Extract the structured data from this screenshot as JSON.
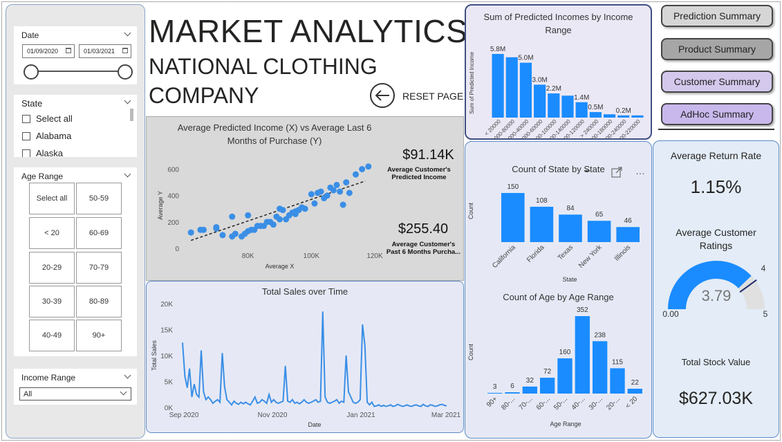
{
  "header": {
    "title": "MARKET ANALYTICS",
    "subtitle_line1": "NATIONAL CLOTHING",
    "subtitle_line2": "COMPANY",
    "reset_label": "RESET PAGE"
  },
  "slicers": {
    "date": {
      "title": "Date",
      "start": "01/09/2020",
      "end": "01/03/2021"
    },
    "state": {
      "title": "State",
      "items": [
        "Select all",
        "Alabama",
        "Alaska"
      ]
    },
    "age_range": {
      "title": "Age Range",
      "tiles": [
        "Select all",
        "50-59",
        "< 20",
        "60-69",
        "20-29",
        "70-79",
        "30-39",
        "80-89",
        "40-49",
        "90+"
      ]
    },
    "income_range": {
      "title": "Income Range",
      "selected": "All"
    }
  },
  "nav": {
    "prediction": "Prediction Summary",
    "product": "Product Summary",
    "customer": "Customer Summary",
    "adhoc": "AdHoc Summary"
  },
  "scatter": {
    "title_line1": "Average Predicted Income (X) vs Average Last 6",
    "title_line2": "Months of Purchase (Y)"
  },
  "kpis": {
    "predicted_income": {
      "value": "$91.14K",
      "label_line1": "Average Customer's",
      "label_line2": "Predicted Income"
    },
    "past_purchase": {
      "value": "$255.40",
      "label_line1": "Average Customer's",
      "label_line2": "Past 6 Months Purcha..."
    }
  },
  "sales": {
    "title": "Total Sales over Time"
  },
  "income_chart": {
    "title_line1": "Sum of Predicted Incomes by Income",
    "title_line2": "Range"
  },
  "state_chart": {
    "title": "Count of State by State"
  },
  "age_chart": {
    "title": "Count of Age by Age Range"
  },
  "right_kpis": {
    "return_rate_label": "Average Return Rate",
    "return_rate_value": "1.15%",
    "ratings_label_line1": "Average Customer",
    "ratings_label_line2": "Ratings",
    "gauge_value": "3.79",
    "gauge_min": "0.00",
    "gauge_max": "5",
    "gauge_target": "4",
    "stock_label": "Total Stock Value",
    "stock_value": "$627.03K"
  },
  "colors": {
    "bar": "#1a8cff",
    "point": "#3a8ee6",
    "line": "#3a8ee6",
    "nav_selected": "#d4c8ec",
    "nav_default": "#d6d6d6"
  },
  "chart_data": [
    {
      "type": "scatter",
      "xlabel": "Average X",
      "ylabel": "Average Y",
      "xticks": [
        "80K",
        "100K",
        "120K"
      ],
      "yticks": [
        "0",
        "200",
        "400",
        "600"
      ],
      "xlim": [
        60000,
        120000
      ],
      "ylim": [
        0,
        650
      ],
      "points": [
        [
          62000,
          120
        ],
        [
          65000,
          140
        ],
        [
          66000,
          140
        ],
        [
          70000,
          150
        ],
        [
          70000,
          160
        ],
        [
          72000,
          100
        ],
        [
          75000,
          90
        ],
        [
          76000,
          110
        ],
        [
          78000,
          90
        ],
        [
          79000,
          110
        ],
        [
          80000,
          130
        ],
        [
          81000,
          140
        ],
        [
          82000,
          140
        ],
        [
          83000,
          170
        ],
        [
          84000,
          170
        ],
        [
          85000,
          170
        ],
        [
          86000,
          200
        ],
        [
          87000,
          200
        ],
        [
          88000,
          180
        ],
        [
          89000,
          240
        ],
        [
          90000,
          220
        ],
        [
          90000,
          300
        ],
        [
          91000,
          290
        ],
        [
          92000,
          220
        ],
        [
          93000,
          250
        ],
        [
          94000,
          270
        ],
        [
          95000,
          280
        ],
        [
          95000,
          260
        ],
        [
          96000,
          290
        ],
        [
          97000,
          310
        ],
        [
          98000,
          300
        ],
        [
          100000,
          410
        ],
        [
          101000,
          340
        ],
        [
          102000,
          420
        ],
        [
          103000,
          430
        ],
        [
          104000,
          380
        ],
        [
          105000,
          400
        ],
        [
          106000,
          460
        ],
        [
          107000,
          440
        ],
        [
          108000,
          480
        ],
        [
          109000,
          430
        ],
        [
          110000,
          330
        ],
        [
          111000,
          500
        ],
        [
          112000,
          420
        ],
        [
          114000,
          560
        ],
        [
          116000,
          600
        ],
        [
          118000,
          620
        ],
        [
          75000,
          240
        ],
        [
          80000,
          250
        ]
      ],
      "trend": [
        [
          62000,
          60
        ],
        [
          117000,
          510
        ]
      ]
    },
    {
      "type": "line",
      "xlabel": "Date",
      "ylabel": "Total Sales",
      "xticks": [
        "Sep 2020",
        "Nov 2020",
        "Jan 2021",
        "Mar 2021"
      ],
      "yticks": [
        "0K",
        "5K",
        "10K",
        "15K",
        "20K"
      ],
      "ylim": [
        0,
        20000
      ],
      "values": [
        12500,
        6000,
        3800,
        7500,
        2000,
        4500,
        2500,
        2000,
        11000,
        3000,
        1500,
        2000,
        1500,
        800,
        1200,
        1500,
        1000,
        10500,
        4000,
        1500,
        1000,
        500,
        1200,
        800,
        600,
        1000,
        700,
        1000,
        700,
        500,
        1200,
        2000,
        800,
        1000,
        1500,
        1200,
        800,
        2500,
        1000,
        1500,
        1000,
        800,
        1000,
        1200,
        8000,
        1200,
        1000,
        1500,
        800,
        1000,
        700,
        1000,
        1500,
        1000,
        800,
        1000,
        1200,
        1500,
        1000,
        1200,
        18500,
        2000,
        1000,
        800,
        1000,
        1200,
        1500,
        800,
        1200,
        1000,
        10000,
        3000,
        2000,
        1000,
        800,
        1000,
        1500,
        16000,
        12000,
        1000,
        500,
        1000,
        200,
        300,
        500,
        200,
        400,
        200,
        300,
        500,
        200,
        300,
        600,
        400,
        200,
        300,
        500,
        300,
        200,
        400,
        500,
        300,
        200,
        600,
        300,
        200,
        500,
        400,
        200,
        300,
        500,
        600,
        400,
        300
      ]
    },
    {
      "type": "bar",
      "xlabel": "Income Range",
      "ylabel": "Sum of Predicted Income",
      "categories": [
        "< 20000",
        "60000-80000",
        "20000-40000",
        "40000-60000",
        "80000-100000",
        "120000-140000",
        "100000-120000",
        "> 240000",
        "160000-180000",
        "220000-240000",
        "200000-220000"
      ],
      "values": [
        5.8,
        5.5,
        5.0,
        3.0,
        2.2,
        2.0,
        1.4,
        0.5,
        0.3,
        0.2,
        0.2
      ],
      "data_labels": [
        "5.8M",
        "",
        "5.0M",
        "3.0M",
        "2.2M",
        "",
        "1.4M",
        "0.5M",
        "",
        "0.2M",
        ""
      ]
    },
    {
      "type": "bar",
      "xlabel": "State",
      "ylabel": "Count",
      "categories": [
        "California",
        "Florida",
        "Texas",
        "New York",
        "Illinois"
      ],
      "values": [
        150,
        108,
        84,
        65,
        46
      ]
    },
    {
      "type": "bar",
      "xlabel": "Age Range",
      "ylabel": "Count",
      "categories": [
        "90+",
        "80-...",
        "70-...",
        "60-...",
        "50-...",
        "40-...",
        "30-...",
        "20-...",
        "< 20"
      ],
      "values": [
        3,
        6,
        32,
        72,
        160,
        352,
        238,
        115,
        22
      ]
    }
  ]
}
